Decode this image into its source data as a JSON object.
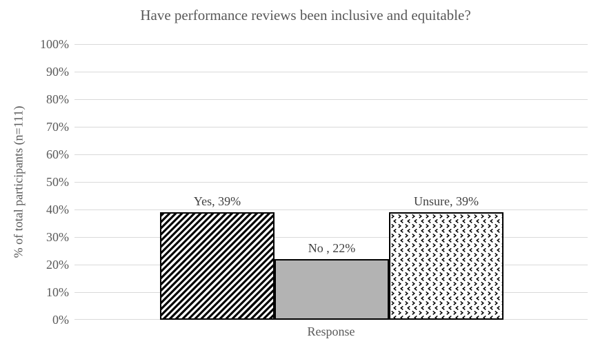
{
  "chart_data": {
    "type": "bar",
    "title": "Have performance reviews been inclusive and equitable?",
    "xlabel": "Response",
    "ylabel": "% of total participants (n=111)",
    "categories": [
      "Yes",
      "No",
      "Unsure"
    ],
    "values": [
      39,
      22,
      39
    ],
    "data_labels": [
      "Yes, 39%",
      "No , 22%",
      "Unsure, 39%"
    ],
    "y_ticks": [
      "100%",
      "90%",
      "80%",
      "70%",
      "60%",
      "50%",
      "40%",
      "30%",
      "20%",
      "10%",
      "0%"
    ],
    "ylim": [
      0,
      100
    ],
    "y_tick_interval": 10,
    "grid": true,
    "legend_position": "none",
    "bar_styles": [
      {
        "category": "Yes",
        "fill": "diagonal-stripe-pattern",
        "pattern_color": "#000000",
        "background": "#ffffff"
      },
      {
        "category": "No",
        "fill": "solid",
        "color": "#b3b3b3"
      },
      {
        "category": "Unsure",
        "fill": "divot-chevron-pattern",
        "pattern_color": "#000000",
        "background": "#ffffff"
      }
    ],
    "colors": {
      "text": "#595959",
      "data_label_text": "#404040",
      "gridline": "#d9d9d9",
      "bar_border": "#000000",
      "background": "#ffffff"
    }
  }
}
